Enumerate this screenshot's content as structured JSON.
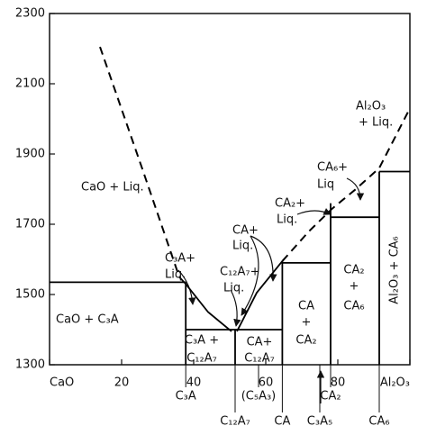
{
  "chart_data": {
    "type": "line",
    "xlim": [
      0,
      100
    ],
    "ylim": [
      1300,
      2300
    ],
    "yticks": [
      1300,
      1500,
      1700,
      1900,
      2100,
      2300
    ],
    "xticks": [
      {
        "value": 0,
        "label": "CaO"
      },
      20,
      40,
      60,
      80,
      {
        "value": 100,
        "label": "Al₂O₃"
      }
    ],
    "series": [
      {
        "color": "#000",
        "dash": true,
        "x": [
          14,
          26,
          36
        ],
        "values": [
          2205,
          1850,
          1550
        ]
      },
      {
        "color": "#000",
        "dash": false,
        "x": [
          36,
          37.8,
          44,
          50.5
        ],
        "values": [
          1550,
          1530,
          1450,
          1395
        ]
      },
      {
        "color": "#000",
        "dash": false,
        "x": [
          52,
          57.5,
          64.6
        ],
        "values": [
          1395,
          1505,
          1595
        ]
      },
      {
        "color": "#000",
        "dash": true,
        "x": [
          64.6,
          72,
          78.5,
          85,
          91.5,
          100
        ],
        "values": [
          1595,
          1680,
          1745,
          1800,
          1860,
          2030
        ]
      },
      {
        "color": "#000",
        "dash": false,
        "x": [
          0,
          37.8
        ],
        "values": [
          1535,
          1535
        ]
      },
      {
        "color": "#000",
        "dash": false,
        "x": [
          37.8,
          37.8
        ],
        "values": [
          1300,
          1535
        ]
      },
      {
        "color": "#000",
        "dash": false,
        "x": [
          37.8,
          64.6
        ],
        "values": [
          1400,
          1400
        ]
      },
      {
        "color": "#000",
        "dash": false,
        "x": [
          51.5,
          51.5
        ],
        "values": [
          1300,
          1400
        ]
      },
      {
        "color": "#000",
        "dash": false,
        "x": [
          64.6,
          64.6
        ],
        "values": [
          1300,
          1595
        ]
      },
      {
        "color": "#000",
        "dash": false,
        "x": [
          64.6,
          78
        ],
        "values": [
          1590,
          1590
        ]
      },
      {
        "color": "#000",
        "dash": false,
        "x": [
          78,
          78
        ],
        "values": [
          1300,
          1760
        ]
      },
      {
        "color": "#000",
        "dash": false,
        "x": [
          78,
          91.5
        ],
        "values": [
          1720,
          1720
        ]
      },
      {
        "color": "#000",
        "dash": false,
        "x": [
          91.5,
          91.5
        ],
        "values": [
          1300,
          1850
        ]
      },
      {
        "color": "#000",
        "dash": false,
        "x": [
          91.5,
          100
        ],
        "values": [
          1850,
          1850
        ]
      }
    ],
    "compositions": [
      {
        "label": "C₃A",
        "x": 37.8,
        "row": 1
      },
      {
        "label": "(C₅A₃)",
        "x": 58,
        "row": 1
      },
      {
        "label": "CA₂",
        "x": 78,
        "row": 1
      },
      {
        "label": "C₁₂A₇",
        "x": 51.5,
        "row": 2
      },
      {
        "label": "CA",
        "x": 64.6,
        "row": 2
      },
      {
        "label": "C₃A₅",
        "x": 75,
        "row": 2
      },
      {
        "label": "CA₆",
        "x": 91.5,
        "row": 2
      }
    ],
    "annotations": [
      "CaO + Liq.",
      "CaO + C₃A",
      "C₃A+",
      "Liq.",
      "C₁₂A₇+",
      "Liq.",
      "CA+",
      "Liq.",
      "CA₂+",
      "Liq.",
      "CA₆+",
      "Liq",
      "Al₂O₃",
      "+ Liq.",
      "C₃A +",
      "C₁₂A₇",
      "CA+",
      "C₁₂A₇",
      "CA",
      "+",
      "CA₂",
      "CA₂",
      "+",
      "CA₆",
      "Al₂O₃ + CA₆"
    ]
  }
}
